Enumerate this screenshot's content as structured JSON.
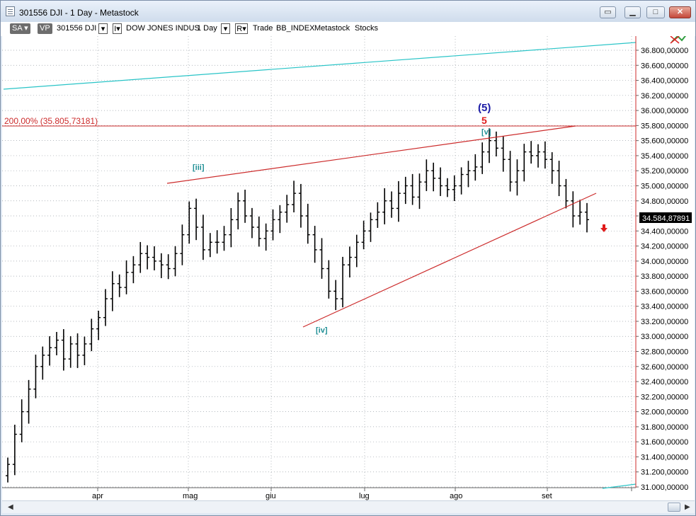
{
  "window": {
    "title": "301556 DJI - 1 Day - Metastock"
  },
  "toolbar": {
    "sa_label": "SA",
    "vp_label": "VP",
    "symbol": "301556 DJI",
    "security_name": "DOW JONES INDUS",
    "period": "1 Day",
    "r_label": "R",
    "mode": "Trade",
    "index_name": "BB_INDEX",
    "source": "Metastock",
    "category": "Stocks"
  },
  "chart_data": {
    "type": "ohlc",
    "ylim": [
      31000,
      37000
    ],
    "y_ticks": [
      "36.800,00000",
      "36.600,00000",
      "36.400,00000",
      "36.200,00000",
      "36.000,00000",
      "35.800,00000",
      "35.600,00000",
      "35.400,00000",
      "35.200,00000",
      "35.000,00000",
      "34.800,00000",
      "34.600,00000",
      "34.400,00000",
      "34.200,00000",
      "34.000,00000",
      "33.800,00000",
      "33.600,00000",
      "33.400,00000",
      "33.200,00000",
      "33.000,00000",
      "32.800,00000",
      "32.600,00000",
      "32.400,00000",
      "32.200,00000",
      "32.000,00000",
      "31.800,00000",
      "31.600,00000",
      "31.400,00000",
      "31.200,00000",
      "31.000,00000"
    ],
    "x_labels": [
      "apr",
      "mag",
      "giu",
      "lug",
      "ago",
      "set"
    ],
    "last_price": "34.584,87891",
    "fib_label": "200,00% (35.805,73181)",
    "fib_level": 35805.73,
    "wave_labels": {
      "w5_paren": "(5)",
      "w5": "5",
      "v": "[v]",
      "iii": "[iii]",
      "iv": "[iv]"
    },
    "close_values": [
      31300,
      31700,
      32000,
      32300,
      32600,
      32750,
      32850,
      32950,
      32700,
      32900,
      32750,
      32900,
      33100,
      33250,
      33500,
      33700,
      33650,
      33850,
      33950,
      34100,
      34050,
      34000,
      33950,
      33900,
      34100,
      34350,
      34700,
      34450,
      34150,
      34250,
      34250,
      34350,
      34550,
      34800,
      34600,
      34450,
      34300,
      34400,
      34550,
      34650,
      34750,
      34900,
      34600,
      34350,
      34150,
      33900,
      33600,
      33500,
      33950,
      34050,
      34250,
      34400,
      34550,
      34650,
      34800,
      34700,
      34900,
      35000,
      34850,
      35050,
      35200,
      35100,
      35000,
      34950,
      35000,
      35150,
      35200,
      35250,
      35450,
      35600,
      35500,
      35350,
      35050,
      35200,
      35450,
      35400,
      35450,
      35350,
      35200,
      35000,
      34800,
      34600,
      34650,
      34550
    ]
  },
  "colors": {
    "grid": "#9aa0a8",
    "red_line": "#cc2b2b",
    "cyan_line": "#29c4c7",
    "teal_label": "#1f8f95",
    "blue_label": "#1a1aa6",
    "bar": "#000000"
  },
  "icons": [
    "app-icon",
    "restore-icon",
    "minimize-icon",
    "maximize-icon",
    "close-icon",
    "dropdown-icon",
    "expert-icon",
    "sell-arrow-icon"
  ]
}
